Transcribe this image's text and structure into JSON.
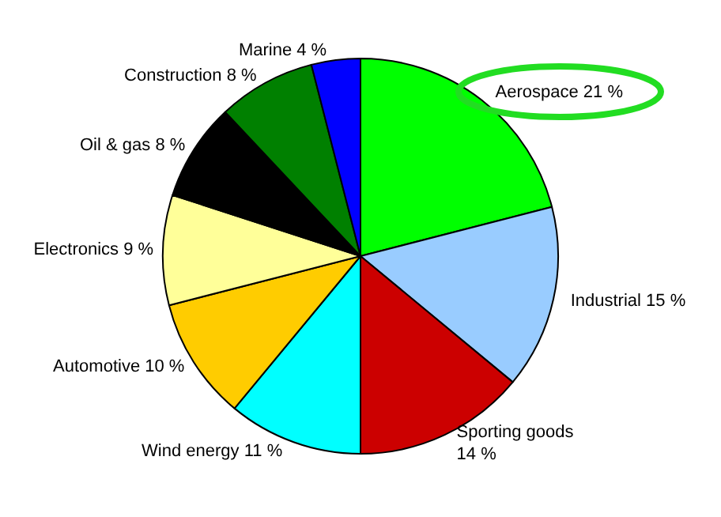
{
  "chart_data": {
    "type": "pie",
    "categories": [
      "Aerospace",
      "Industrial",
      "Sporting goods",
      "Wind energy",
      "Automotive",
      "Electronics",
      "Oil & gas",
      "Construction",
      "Marine"
    ],
    "values": [
      21,
      15,
      14,
      11,
      10,
      9,
      8,
      8,
      4
    ],
    "value_labels": [
      "21 %",
      "15 %",
      "14 %",
      "11 %",
      "10 %",
      "9 %",
      "8 %",
      "8 %",
      "4 %"
    ],
    "colors": [
      "#00ff00",
      "#99ccff",
      "#cc0000",
      "#00ffff",
      "#ffcc00",
      "#ffff99",
      "#000000",
      "#008000",
      "#0000ff"
    ],
    "legend": false
  }
}
